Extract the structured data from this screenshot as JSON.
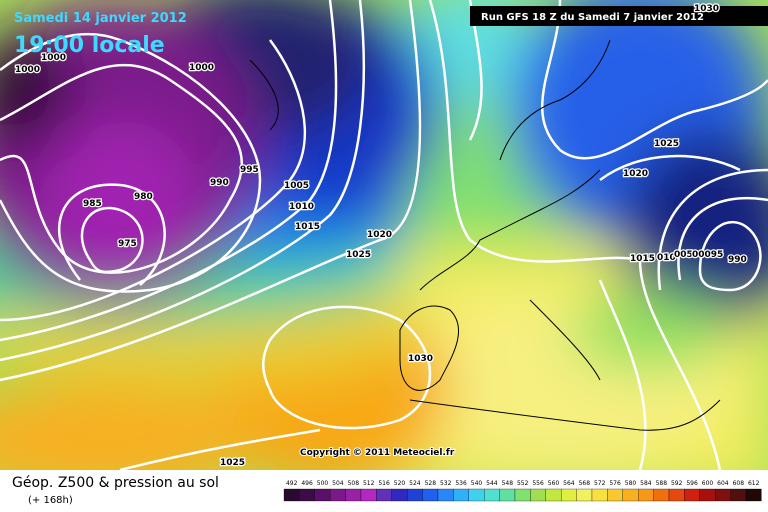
{
  "header": {
    "date": "Samedi 14 janvier 2012",
    "time": "19:00 locale",
    "run": "Run GFS 18 Z du Samedi 7 janvier 2012"
  },
  "map": {
    "isobar_labels": [
      "1000",
      "1000",
      "1000",
      "995",
      "990",
      "985",
      "980",
      "975",
      "1005",
      "1010",
      "1015",
      "1020",
      "1025",
      "1030",
      "1025",
      "1025",
      "1020",
      "1015",
      "010",
      "005",
      "00095",
      "990",
      "1030"
    ],
    "copyright": "Copyright © 2011 Meteociel.fr"
  },
  "legend": {
    "title": "Géop. Z500 & pression au sol",
    "subtitle": "(+ 168h)",
    "scale": [
      "492",
      "496",
      "500",
      "504",
      "508",
      "512",
      "516",
      "520",
      "524",
      "528",
      "532",
      "536",
      "540",
      "544",
      "548",
      "552",
      "556",
      "560",
      "564",
      "568",
      "572",
      "576",
      "580",
      "584",
      "588",
      "592",
      "596",
      "600",
      "604",
      "608",
      "612"
    ]
  }
}
